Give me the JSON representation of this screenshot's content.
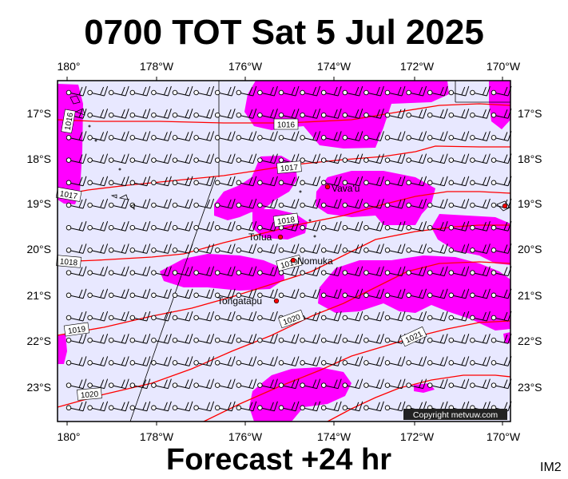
{
  "title": "0700 TOT Sat 5 Jul 2025",
  "footer": "Forecast +24 hr",
  "image_tag": "IM2",
  "copyright": "Copyright metvuw.com",
  "colors": {
    "ocean": "#e8e8ff",
    "rain": "#ff00ff",
    "isobar": "#ff0000",
    "wind": "#000000"
  },
  "axes": {
    "lon_labels": [
      "180°",
      "178°W",
      "176°W",
      "174°W",
      "172°W",
      "170°W"
    ],
    "lat_labels_left": [
      "17°S",
      "18°S",
      "19°S",
      "20°S",
      "21°S",
      "22°S",
      "23°S"
    ],
    "lat_labels_right": [
      "17°S",
      "18°S",
      "19°S",
      "20°S",
      "21°S",
      "22°S",
      "23°S"
    ]
  },
  "isobars": [
    {
      "label": "1016"
    },
    {
      "label": "1016"
    },
    {
      "label": "1017"
    },
    {
      "label": "1017"
    },
    {
      "label": "1018"
    },
    {
      "label": "1018"
    },
    {
      "label": "1019"
    },
    {
      "label": "1019"
    },
    {
      "label": "1020"
    },
    {
      "label": "1020"
    },
    {
      "label": "1021"
    }
  ],
  "places": [
    {
      "name": "Vava'u"
    },
    {
      "name": "Tofua"
    },
    {
      "name": "Nomuka"
    },
    {
      "name": "Tongatapu"
    }
  ]
}
